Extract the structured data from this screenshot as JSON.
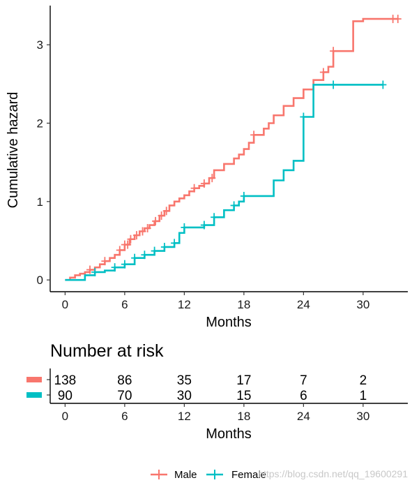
{
  "chart_data": [
    {
      "type": "line",
      "title": "",
      "xlabel": "Months",
      "ylabel": "Cumulative hazard",
      "xlim": [
        -1.5,
        34.5
      ],
      "ylim": [
        -0.15,
        3.5
      ],
      "xticks": [
        0,
        6,
        12,
        18,
        24,
        30
      ],
      "yticks": [
        0,
        1,
        2,
        3
      ],
      "grid": false,
      "legend_position": "bottom",
      "series": [
        {
          "name": "Male",
          "color": "#F8766D",
          "x": [
            0,
            0.5,
            1,
            1.5,
            2,
            2.5,
            3,
            3.5,
            4,
            4.5,
            5,
            5.5,
            6,
            6.5,
            7,
            7.5,
            8,
            8.5,
            9,
            9.5,
            10,
            10.5,
            11,
            11.5,
            12,
            12.5,
            13,
            13.5,
            14,
            14.5,
            15,
            16,
            17,
            17.5,
            18,
            18.5,
            19,
            20,
            20.5,
            21,
            22,
            23,
            24,
            25,
            26,
            26.5,
            27,
            29,
            30,
            31,
            32,
            33,
            33.5
          ],
          "y": [
            0,
            0.03,
            0.06,
            0.08,
            0.1,
            0.13,
            0.16,
            0.2,
            0.24,
            0.28,
            0.32,
            0.38,
            0.45,
            0.52,
            0.57,
            0.62,
            0.66,
            0.7,
            0.75,
            0.82,
            0.88,
            0.95,
            1.0,
            1.04,
            1.08,
            1.13,
            1.17,
            1.2,
            1.23,
            1.3,
            1.4,
            1.48,
            1.55,
            1.6,
            1.67,
            1.75,
            1.85,
            1.93,
            2.0,
            2.1,
            2.22,
            2.32,
            2.43,
            2.55,
            2.65,
            2.72,
            2.92,
            3.3,
            3.33,
            3.33,
            3.33,
            3.33,
            3.33
          ],
          "censor_x": [
            2.5,
            4,
            5.5,
            6,
            6.3,
            6.6,
            7.2,
            7.8,
            8.3,
            9.1,
            9.7,
            10.2,
            13,
            14,
            14.8,
            19,
            26,
            27,
            33,
            33.5
          ],
          "risk": [
            138,
            86,
            35,
            17,
            7,
            2
          ]
        },
        {
          "name": "Female",
          "color": "#00BFC4",
          "x": [
            0,
            1,
            2,
            3,
            4,
            5,
            6,
            7,
            8,
            9,
            10,
            11,
            11.5,
            12,
            13,
            14,
            15,
            16,
            17,
            17.5,
            18,
            19,
            20,
            21,
            21.5,
            22,
            23,
            23.5,
            24,
            25,
            26,
            27,
            28,
            29,
            30,
            31,
            32
          ],
          "y": [
            0,
            0.0,
            0.06,
            0.1,
            0.12,
            0.16,
            0.2,
            0.28,
            0.32,
            0.37,
            0.42,
            0.47,
            0.6,
            0.67,
            0.67,
            0.7,
            0.8,
            0.89,
            0.95,
            1.0,
            1.07,
            1.07,
            1.07,
            1.27,
            1.27,
            1.4,
            1.52,
            1.52,
            2.08,
            2.49,
            2.49,
            2.49,
            2.49,
            2.49,
            2.49,
            2.49,
            2.49
          ],
          "censor_x": [
            3,
            5,
            6,
            7,
            8,
            9,
            10,
            11,
            12,
            14,
            15,
            17,
            18,
            24,
            27,
            32
          ],
          "risk": [
            90,
            70,
            30,
            15,
            6,
            1
          ]
        }
      ]
    },
    {
      "type": "table",
      "title": "Number at risk",
      "xlabel": "Months",
      "xticks": [
        0,
        6,
        12,
        18,
        24,
        30
      ],
      "rows": [
        {
          "name": "Male",
          "color": "#F8766D",
          "values": [
            138,
            86,
            35,
            17,
            7,
            2
          ]
        },
        {
          "name": "Female",
          "color": "#00BFC4",
          "values": [
            90,
            70,
            30,
            15,
            6,
            1
          ]
        }
      ]
    }
  ],
  "legend": {
    "items": [
      {
        "label": "Male",
        "color": "#F8766D"
      },
      {
        "label": "Female",
        "color": "#00BFC4"
      }
    ]
  },
  "watermark": "https://blog.csdn.net/qq_19600291"
}
